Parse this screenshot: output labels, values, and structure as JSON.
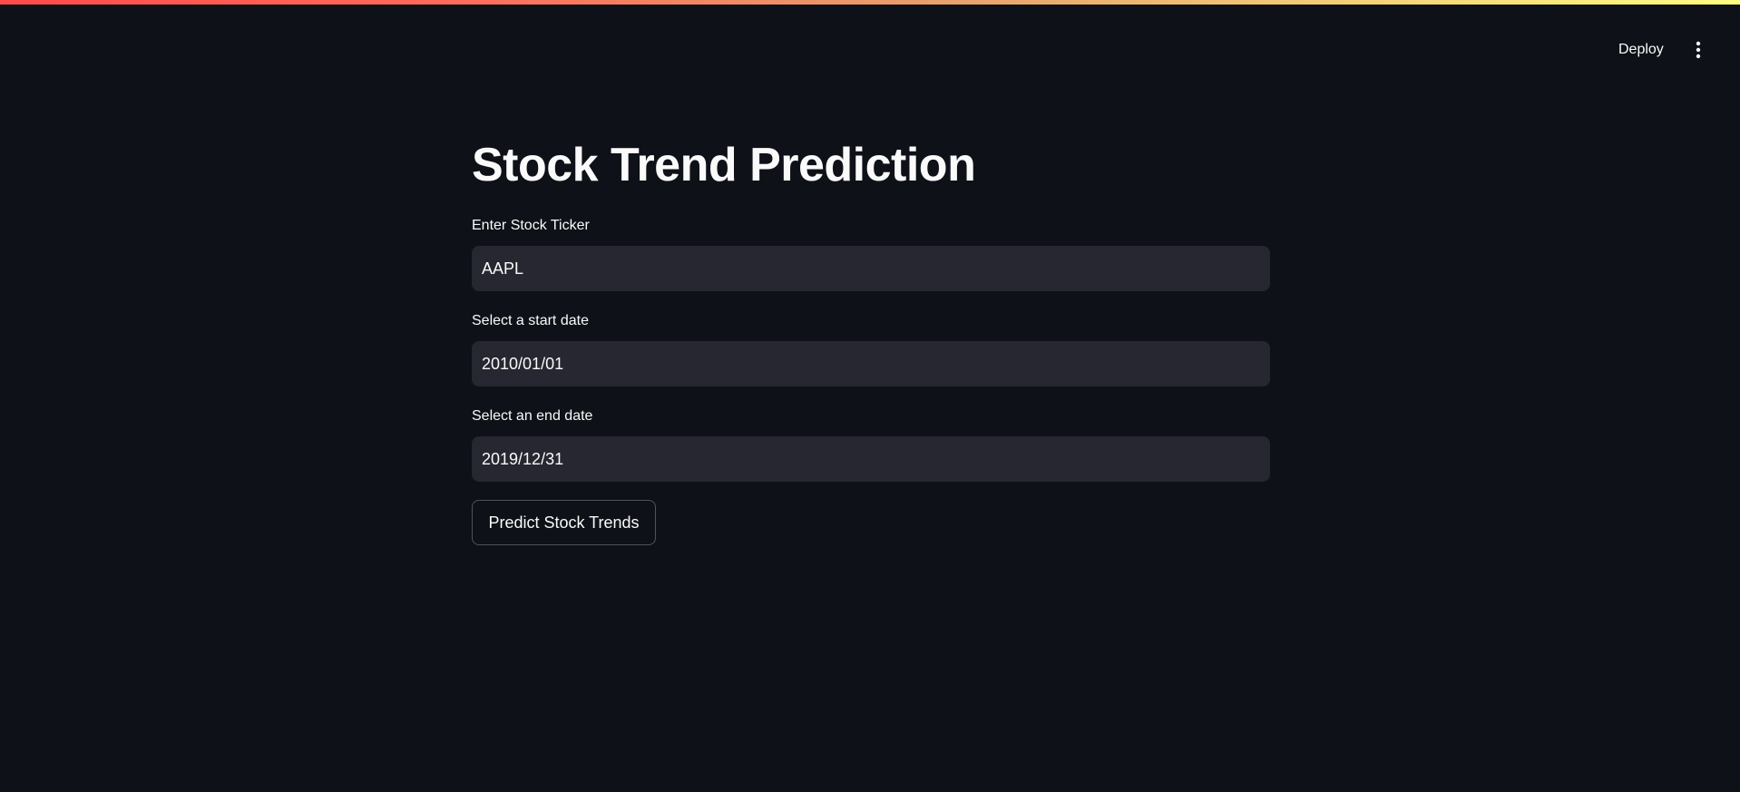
{
  "header": {
    "deploy_label": "Deploy",
    "menu_icon": "vertical-ellipsis-icon"
  },
  "main": {
    "title": "Stock Trend Prediction",
    "fields": [
      {
        "label": "Enter Stock Ticker",
        "value": "AAPL"
      },
      {
        "label": "Select a start date",
        "value": "2010/01/01"
      },
      {
        "label": "Select an end date",
        "value": "2019/12/31"
      }
    ],
    "predict_button_label": "Predict Stock Trends"
  },
  "colors": {
    "background": "#0e1117",
    "input_background": "#262730",
    "text": "#fafafa",
    "accent_gradient_start": "#ff4b4b",
    "accent_gradient_end": "#fffd80"
  }
}
